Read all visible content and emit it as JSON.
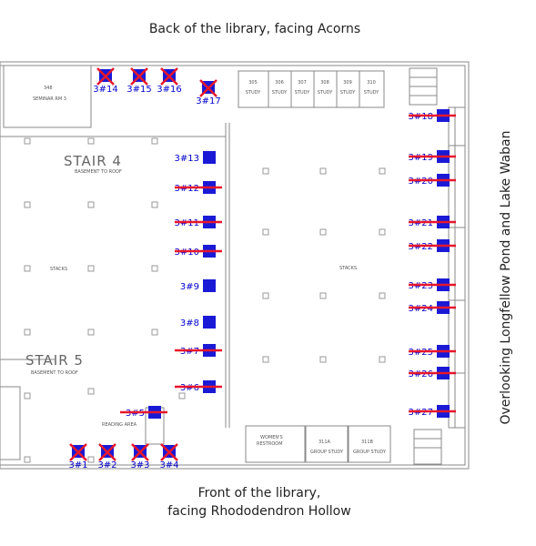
{
  "captions": {
    "top": "Back of the library, facing Acorns",
    "bottom_line1": "Front of the library,",
    "bottom_line2": "facing Rhododendron Hollow",
    "side": "Overlooking Longfellow Pond and Lake Waban"
  },
  "plan_labels": {
    "stair4": "STAIR 4",
    "stair4_sub": "BASEMENT TO ROOF",
    "stair5": "STAIR 5",
    "stair5_sub": "BASEMENT TO ROOF",
    "stacks_left": "STACKS",
    "stacks_right": "STACKS",
    "reading_area": "READING AREA",
    "seminar_num": "348",
    "seminar": "SEMINAR RM 3",
    "womens_restroom_1": "WOMEN'S",
    "womens_restroom_2": "RESTROOM",
    "group_study": "GROUP STUDY",
    "group_study_a": "311A",
    "group_study_b": "311B",
    "study": "STUDY",
    "study_rooms": [
      "305",
      "306",
      "307",
      "308",
      "309",
      "310"
    ]
  },
  "seats": [
    {
      "label": "3#1",
      "status": "unavailable",
      "mark": "x"
    },
    {
      "label": "3#2",
      "status": "unavailable",
      "mark": "x"
    },
    {
      "label": "3#3",
      "status": "unavailable",
      "mark": "x"
    },
    {
      "label": "3#4",
      "status": "unavailable",
      "mark": "x"
    },
    {
      "label": "3#5",
      "status": "unavailable",
      "mark": "strike"
    },
    {
      "label": "3#6",
      "status": "unavailable",
      "mark": "strike"
    },
    {
      "label": "3#7",
      "status": "unavailable",
      "mark": "strike"
    },
    {
      "label": "3#8",
      "status": "available",
      "mark": "none"
    },
    {
      "label": "3#9",
      "status": "available",
      "mark": "none"
    },
    {
      "label": "3#10",
      "status": "unavailable",
      "mark": "strike"
    },
    {
      "label": "3#11",
      "status": "unavailable",
      "mark": "strike"
    },
    {
      "label": "3#12",
      "status": "unavailable",
      "mark": "strike"
    },
    {
      "label": "3#13",
      "status": "available",
      "mark": "none"
    },
    {
      "label": "3#14",
      "status": "unavailable",
      "mark": "x"
    },
    {
      "label": "3#15",
      "status": "unavailable",
      "mark": "x"
    },
    {
      "label": "3#16",
      "status": "unavailable",
      "mark": "x"
    },
    {
      "label": "3#17",
      "status": "unavailable",
      "mark": "x"
    },
    {
      "label": "3#18",
      "status": "unavailable",
      "mark": "strike"
    },
    {
      "label": "3#19",
      "status": "unavailable",
      "mark": "strike"
    },
    {
      "label": "3#20",
      "status": "unavailable",
      "mark": "strike"
    },
    {
      "label": "3#21",
      "status": "unavailable",
      "mark": "strike"
    },
    {
      "label": "3#22",
      "status": "unavailable",
      "mark": "strike"
    },
    {
      "label": "3#23",
      "status": "unavailable",
      "mark": "strike"
    },
    {
      "label": "3#24",
      "status": "unavailable",
      "mark": "strike"
    },
    {
      "label": "3#25",
      "status": "unavailable",
      "mark": "strike"
    },
    {
      "label": "3#26",
      "status": "unavailable",
      "mark": "strike"
    },
    {
      "label": "3#27",
      "status": "unavailable",
      "mark": "strike"
    }
  ],
  "colors": {
    "seat": "#1a1ad6",
    "seat_label": "#0000cc",
    "strike": "#e8162b",
    "walls": "#8a8a8a"
  }
}
